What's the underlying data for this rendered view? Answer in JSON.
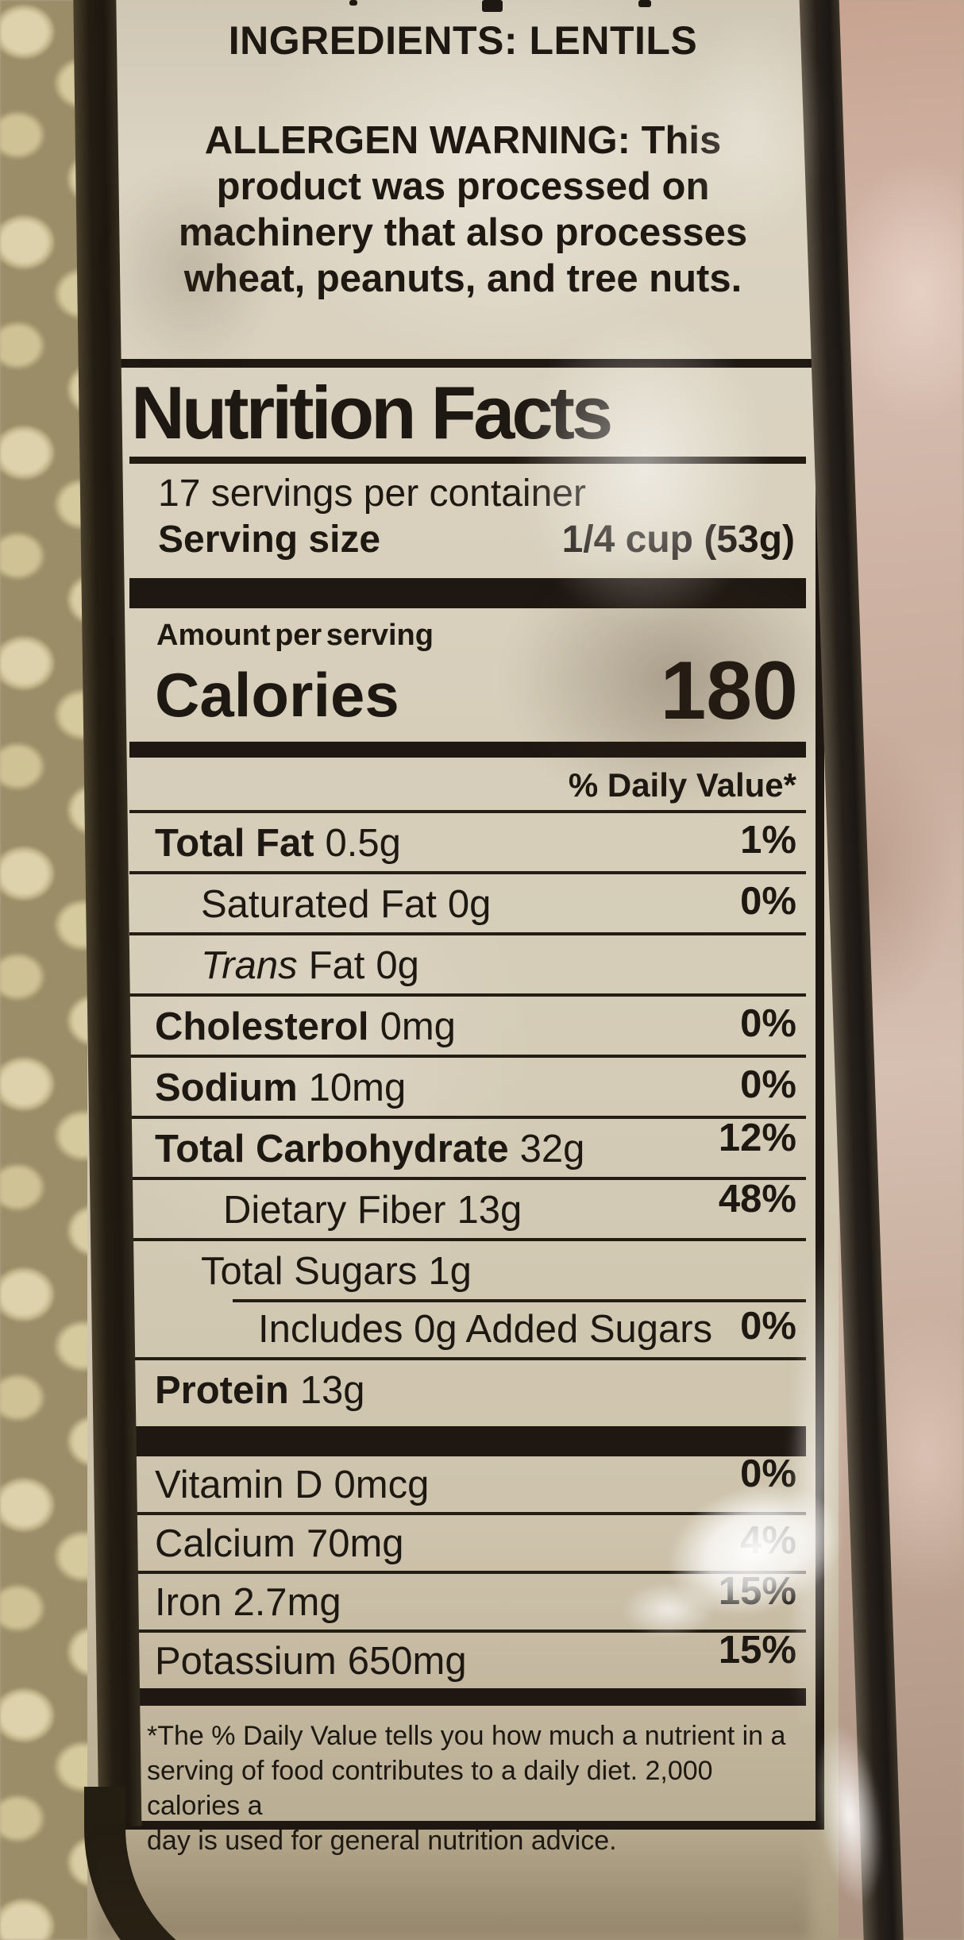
{
  "label": {
    "ingredients_line": "INGREDIENTS: LENTILS",
    "allergen_lines": [
      "ALLERGEN WARNING: This",
      "product was processed on",
      "machinery that also processes",
      "wheat, peanuts, and tree nuts."
    ]
  },
  "nutrition_facts": {
    "title": "Nutrition Facts",
    "servings_per_container": "17 servings per container",
    "serving_size_label": "Serving size",
    "serving_size_value": "1/4 cup (53g)",
    "amount_per_serving_label": "Amount per serving",
    "calories_label": "Calories",
    "calories_value": "180",
    "daily_value_header": "% Daily Value*",
    "rows": [
      {
        "name": "Total Fat",
        "amount": "0.5g",
        "dv": "1%"
      },
      {
        "name": "Saturated Fat",
        "amount": "0g",
        "dv": "0%"
      },
      {
        "name_italic": "Trans",
        "name_rest": "Fat",
        "amount": "0g",
        "dv": ""
      },
      {
        "name": "Cholesterol",
        "amount": "0mg",
        "dv": "0%"
      },
      {
        "name": "Sodium",
        "amount": "10mg",
        "dv": "0%"
      },
      {
        "name": "Total Carbohydrate",
        "amount": "32g",
        "dv": "12%"
      },
      {
        "name": "Dietary Fiber",
        "amount": "13g",
        "dv": "48%"
      },
      {
        "name": "Total Sugars",
        "amount": "1g",
        "dv": ""
      },
      {
        "name": "Includes 0g Added Sugars",
        "amount": "",
        "dv": "0%"
      },
      {
        "name": "Protein",
        "amount": "13g",
        "dv": ""
      }
    ],
    "minerals": [
      {
        "name": "Vitamin D",
        "amount": "0mcg",
        "dv": "0%"
      },
      {
        "name": "Calcium",
        "amount": "70mg",
        "dv": "4%"
      },
      {
        "name": "Iron",
        "amount": "2.7mg",
        "dv": "15%"
      },
      {
        "name": "Potassium",
        "amount": "650mg",
        "dv": "15%"
      }
    ],
    "footnote_lines": [
      "*The % Daily Value tells you how much a nutrient in a",
      "serving of food contributes to a daily diet. 2,000 calories a",
      "day is used for general nutrition advice."
    ]
  },
  "colors": {
    "label_background": "#d8cfba",
    "text": "#1e1812",
    "bag_edge_dark": "#231c12",
    "background_right": "#cdafa0",
    "lentils": "#cfc39c"
  }
}
